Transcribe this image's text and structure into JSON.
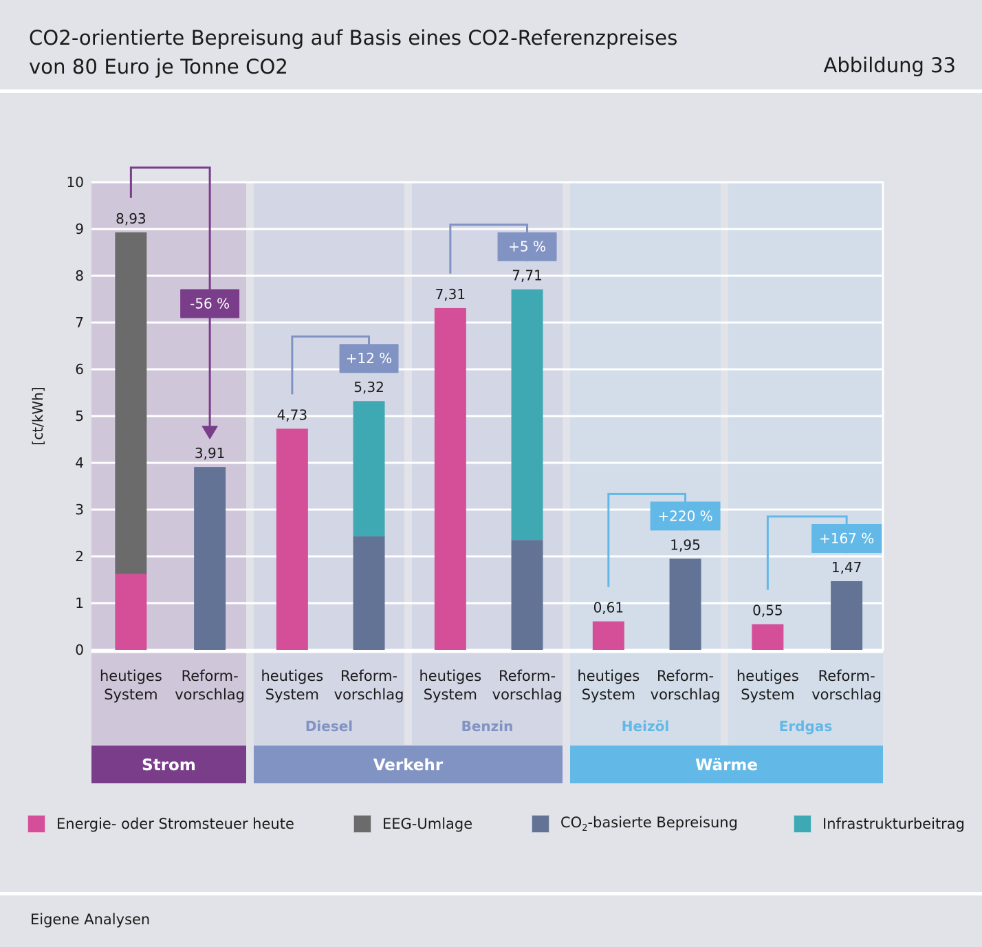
{
  "header": {
    "title_line1": "CO2-orientierte Bepreisung auf Basis eines CO2-Referenzpreises",
    "title_line2": "von 80 Euro je Tonne CO2",
    "figure_label": "Abbildung 33"
  },
  "footer": {
    "source": "Eigene Analysen"
  },
  "colors": {
    "energiesteuer": "#d44f98",
    "eeg": "#6b6b6b",
    "co2": "#627396",
    "infrastruktur": "#3fa9b3",
    "strom_bg": "#d0c6da",
    "verkehr_bg": "#d3d6e4",
    "waerme_bg": "#d2dde9",
    "strom_accent": "#7a3d8a",
    "verkehr_accent": "#8193c3",
    "waerme_accent": "#62b8e6"
  },
  "legend": [
    {
      "key": "energiesteuer",
      "label": "Energie- oder Stromsteuer heute"
    },
    {
      "key": "eeg",
      "label": "EEG-Umlage"
    },
    {
      "key": "co2",
      "label_prefix": "CO",
      "label_sub": "2",
      "label_suffix": "-basierte Bepreisung"
    },
    {
      "key": "infrastruktur",
      "label": "Infrastrukturbeitrag"
    }
  ],
  "chart_data": {
    "type": "bar",
    "stacked": true,
    "ylabel": "[ct/kWh]",
    "ylim": [
      0,
      10
    ],
    "yticks": [
      0,
      1,
      2,
      3,
      4,
      5,
      6,
      7,
      8,
      9,
      10
    ],
    "bar_label_line1": {
      "heute": "heutiges",
      "reform": "Reform-"
    },
    "bar_label_line2": {
      "heute": "System",
      "reform": "vorschlag"
    },
    "groups": [
      {
        "name": "Strom",
        "label": "",
        "sector": "Strom",
        "change": "-56 %",
        "bars": [
          {
            "kind": "heute",
            "total_label": "8,93",
            "segments": [
              {
                "key": "energiesteuer",
                "value": 1.62
              },
              {
                "key": "eeg",
                "value": 7.31
              }
            ]
          },
          {
            "kind": "reform",
            "total_label": "3,91",
            "segments": [
              {
                "key": "co2",
                "value": 3.91
              }
            ]
          }
        ]
      },
      {
        "name": "Diesel",
        "label": "Diesel",
        "sector": "Verkehr",
        "change": "+12 %",
        "bars": [
          {
            "kind": "heute",
            "total_label": "4,73",
            "segments": [
              {
                "key": "energiesteuer",
                "value": 4.73
              }
            ]
          },
          {
            "kind": "reform",
            "total_label": "5,32",
            "segments": [
              {
                "key": "co2",
                "value": 2.43
              },
              {
                "key": "infrastruktur",
                "value": 2.89
              }
            ]
          }
        ]
      },
      {
        "name": "Benzin",
        "label": "Benzin",
        "sector": "Verkehr",
        "change": "+5 %",
        "bars": [
          {
            "kind": "heute",
            "total_label": "7,31",
            "segments": [
              {
                "key": "energiesteuer",
                "value": 7.31
              }
            ]
          },
          {
            "kind": "reform",
            "total_label": "7,71",
            "segments": [
              {
                "key": "co2",
                "value": 2.35
              },
              {
                "key": "infrastruktur",
                "value": 5.36
              }
            ]
          }
        ]
      },
      {
        "name": "Heizöl",
        "label": "Heizöl",
        "sector": "Wärme",
        "change": "+220 %",
        "bars": [
          {
            "kind": "heute",
            "total_label": "0,61",
            "segments": [
              {
                "key": "energiesteuer",
                "value": 0.61
              }
            ]
          },
          {
            "kind": "reform",
            "total_label": "1,95",
            "segments": [
              {
                "key": "co2",
                "value": 1.95
              }
            ]
          }
        ]
      },
      {
        "name": "Erdgas",
        "label": "Erdgas",
        "sector": "Wärme",
        "change": "+167 %",
        "bars": [
          {
            "kind": "heute",
            "total_label": "0,55",
            "segments": [
              {
                "key": "energiesteuer",
                "value": 0.55
              }
            ]
          },
          {
            "kind": "reform",
            "total_label": "1,47",
            "segments": [
              {
                "key": "co2",
                "value": 1.47
              }
            ]
          }
        ]
      }
    ],
    "sectors": [
      "Strom",
      "Verkehr",
      "Wärme"
    ]
  }
}
